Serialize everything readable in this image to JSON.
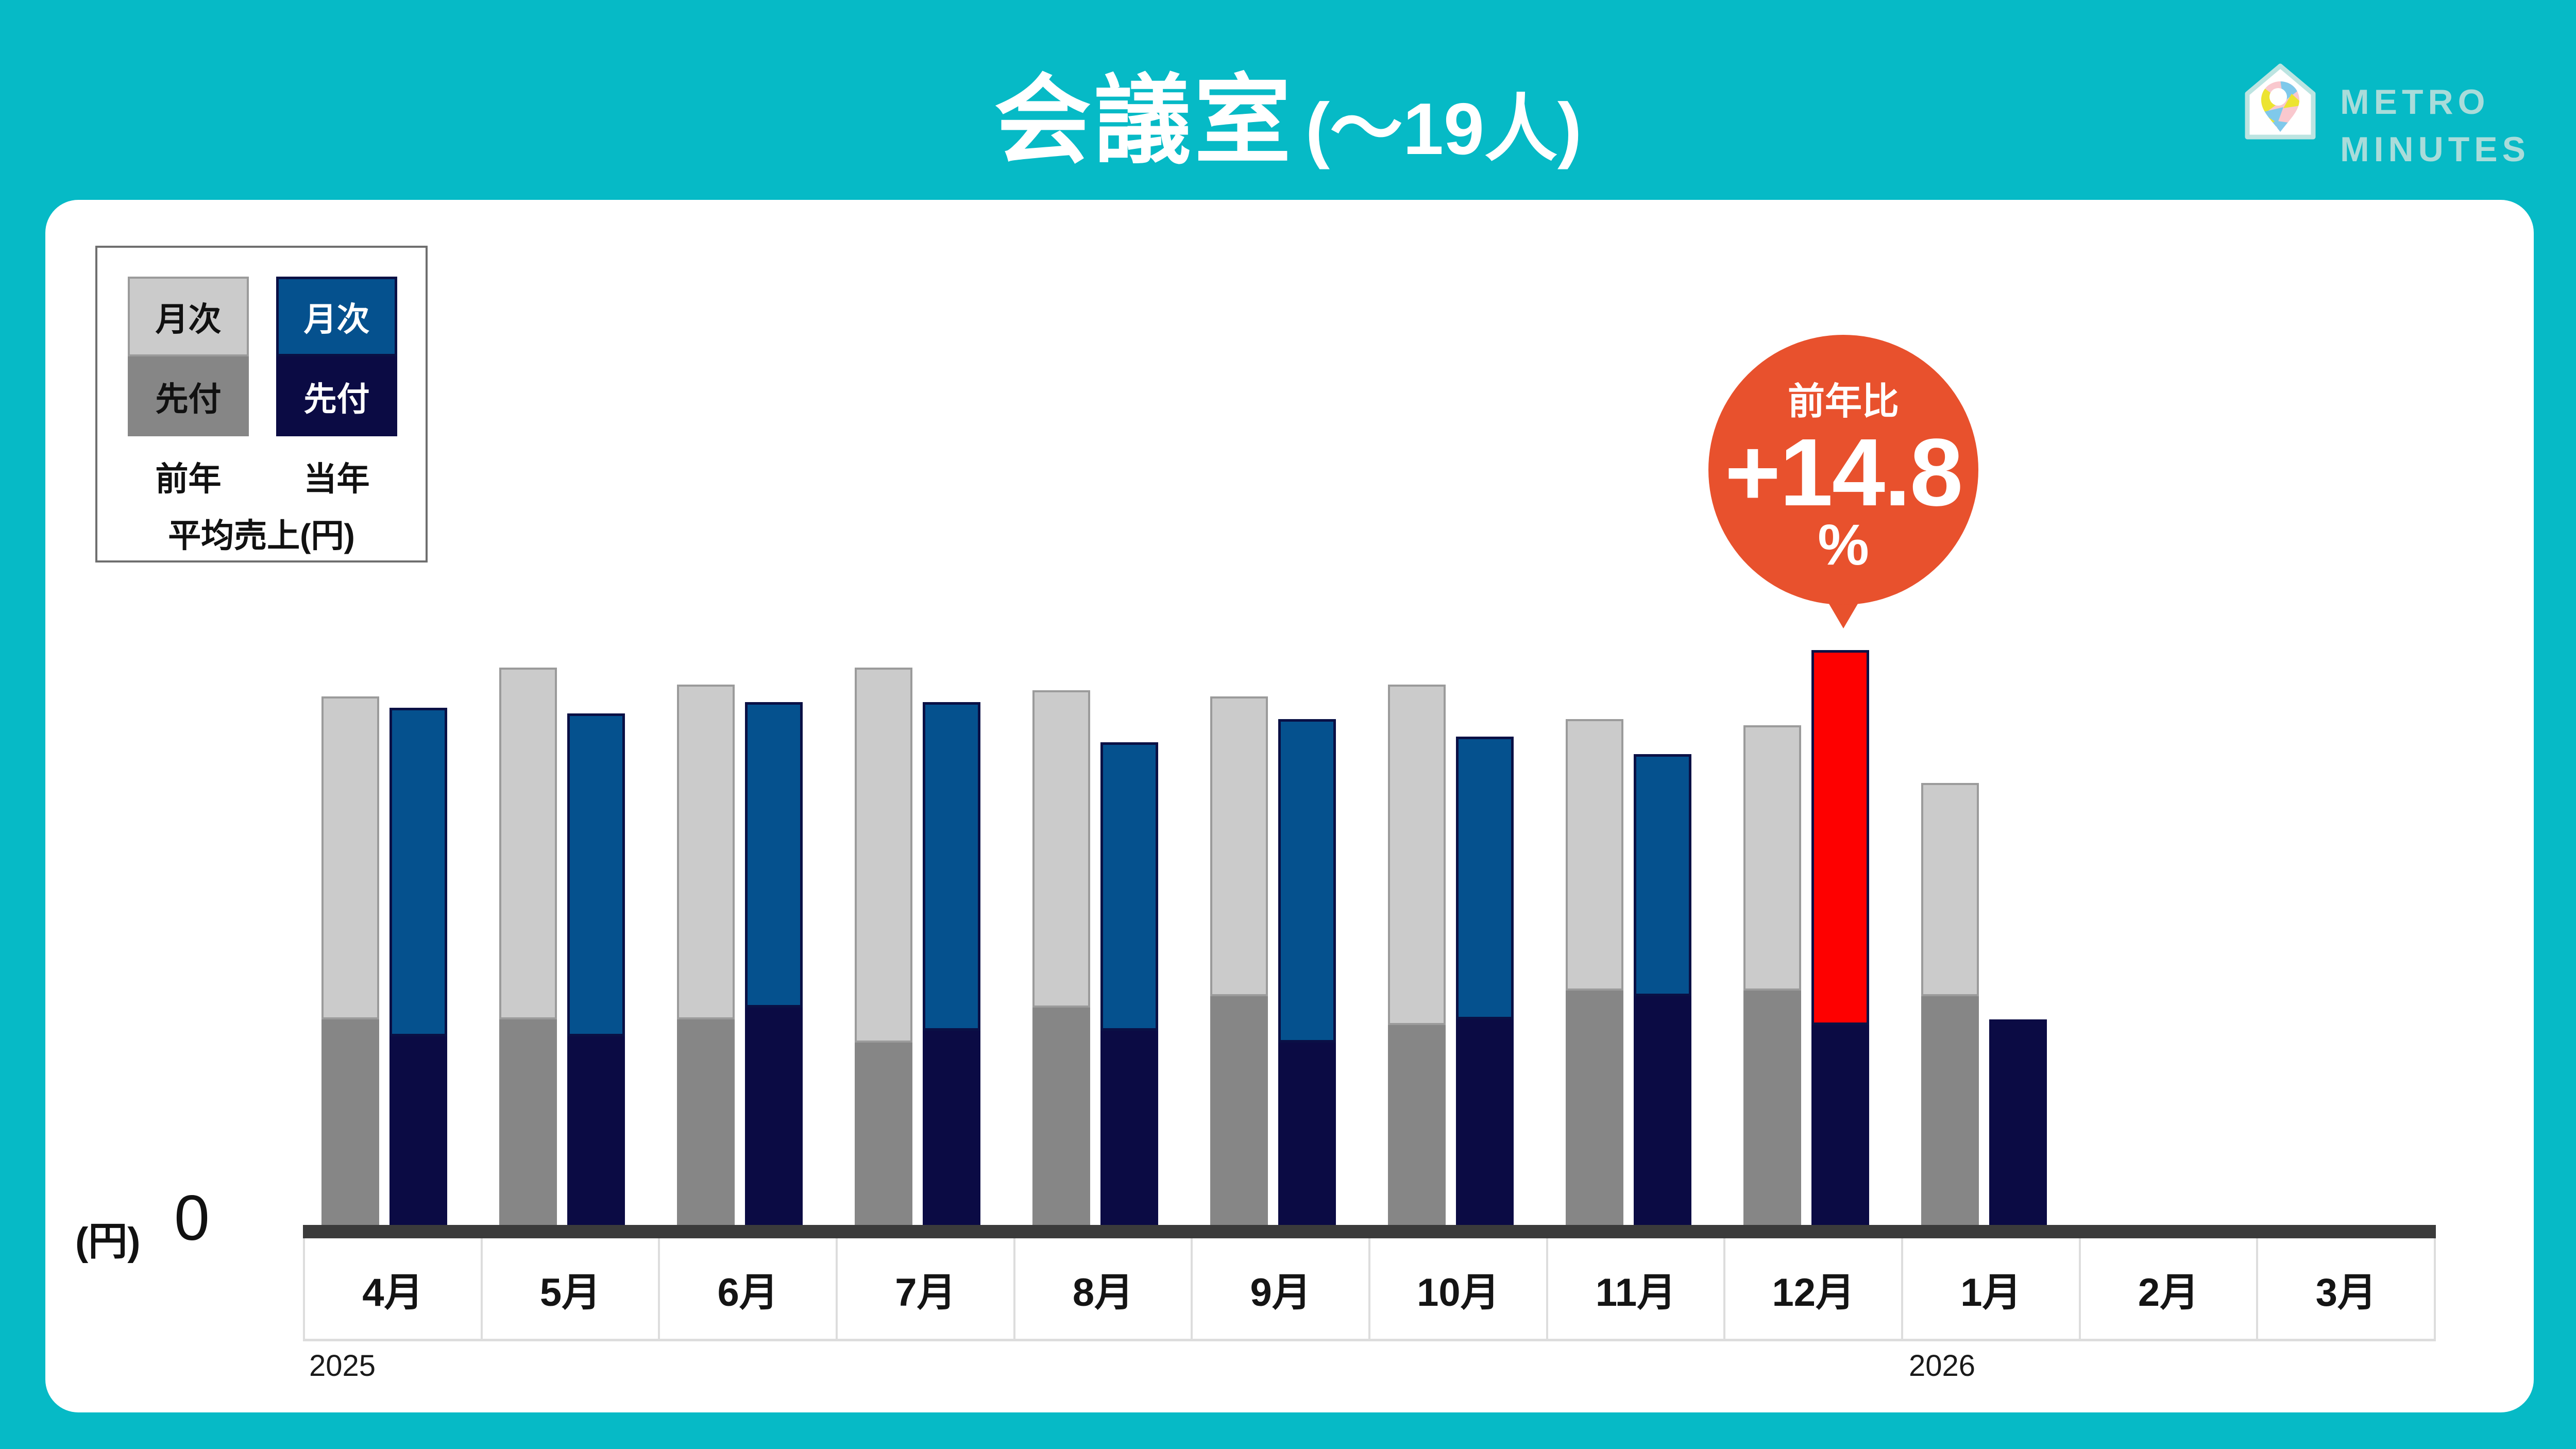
{
  "title": {
    "main": "会議室",
    "paren": "(〜19人)"
  },
  "logo": {
    "line1": "METRO",
    "line2": "MINUTES",
    "icon": "house-map-pin-icon"
  },
  "legend": {
    "prev": {
      "monthly": "月次",
      "advance": "先付",
      "label": "前年"
    },
    "curr": {
      "monthly": "月次",
      "advance": "先付",
      "label": "当年"
    },
    "unit_label": "平均売上(円)"
  },
  "badge": {
    "caption": "前年比",
    "value": "+14.8",
    "unit": "%"
  },
  "axis": {
    "unit_label": "(円)",
    "origin_tick": "0"
  },
  "footer_years": [
    {
      "label": "2025",
      "under_month": "4月",
      "cell_index": 0
    },
    {
      "label": "2026",
      "under_month": "1月",
      "cell_index": 9
    }
  ],
  "colors": {
    "background_teal": "#06BAC6",
    "card_white": "#FFFFFF",
    "title_white": "#FFFFFF",
    "prev_monthly_gray": "#CBCBCB",
    "prev_monthly_border": "#9B9B9B",
    "prev_advance_gray": "#868686",
    "curr_monthly_blue": "#05518E",
    "curr_advance_navy": "#0B0B44",
    "curr_border_navy": "#0A1045",
    "highlight_red": "#FE0000",
    "badge_orange": "#E8512D",
    "axis_dark": "#3B3B3B",
    "cell_border_gray": "#DDDDDD",
    "legend_border_gray": "#6F6F6F",
    "logo_text_teal": "#A9DCDA",
    "pin_pink": "#F9C8CE",
    "pin_blue": "#7FC9EB",
    "pin_yellow": "#ECE431"
  },
  "chart_data": {
    "type": "bar",
    "title": "会議室 (〜19人)",
    "ylabel": "平均売上(円)",
    "xlabel": "",
    "ylim": [
      0,
      100
    ],
    "grid": false,
    "legend_position": "top-left",
    "unit_note": "y-axis shows only 0 (円); values estimated as % of the tallest bar (12月 当年)",
    "categories": [
      "4月",
      "5月",
      "6月",
      "7月",
      "8月",
      "9月",
      "10月",
      "11月",
      "12月",
      "1月",
      "2月",
      "3月"
    ],
    "year_of_category": [
      "2025",
      "2025",
      "2025",
      "2025",
      "2025",
      "2025",
      "2025",
      "2025",
      "2025",
      "2026",
      "2026",
      "2026"
    ],
    "series": [
      {
        "name": "前年 月次",
        "stack": "前年",
        "color_key": "prev_monthly_gray",
        "values": [
          56,
          61,
          58,
          65,
          55,
          52,
          59,
          47,
          46,
          37,
          null,
          null
        ]
      },
      {
        "name": "前年 先付",
        "stack": "前年",
        "color_key": "prev_advance_gray",
        "values": [
          36,
          36,
          36,
          32,
          38,
          40,
          35,
          41,
          41,
          40,
          null,
          null
        ]
      },
      {
        "name": "当年 月次",
        "stack": "当年",
        "color_key": "curr_monthly_blue",
        "values": [
          57,
          56,
          53,
          57,
          50,
          56,
          49,
          42,
          65,
          0,
          null,
          null
        ]
      },
      {
        "name": "当年 先付",
        "stack": "当年",
        "color_key": "curr_advance_navy",
        "values": [
          33,
          33,
          38,
          34,
          34,
          32,
          36,
          40,
          35,
          36,
          null,
          null
        ]
      }
    ],
    "highlight": {
      "category": "12月",
      "series": "当年 月次",
      "color_key": "highlight_red",
      "annotation": "前年比 +14.8%"
    }
  }
}
